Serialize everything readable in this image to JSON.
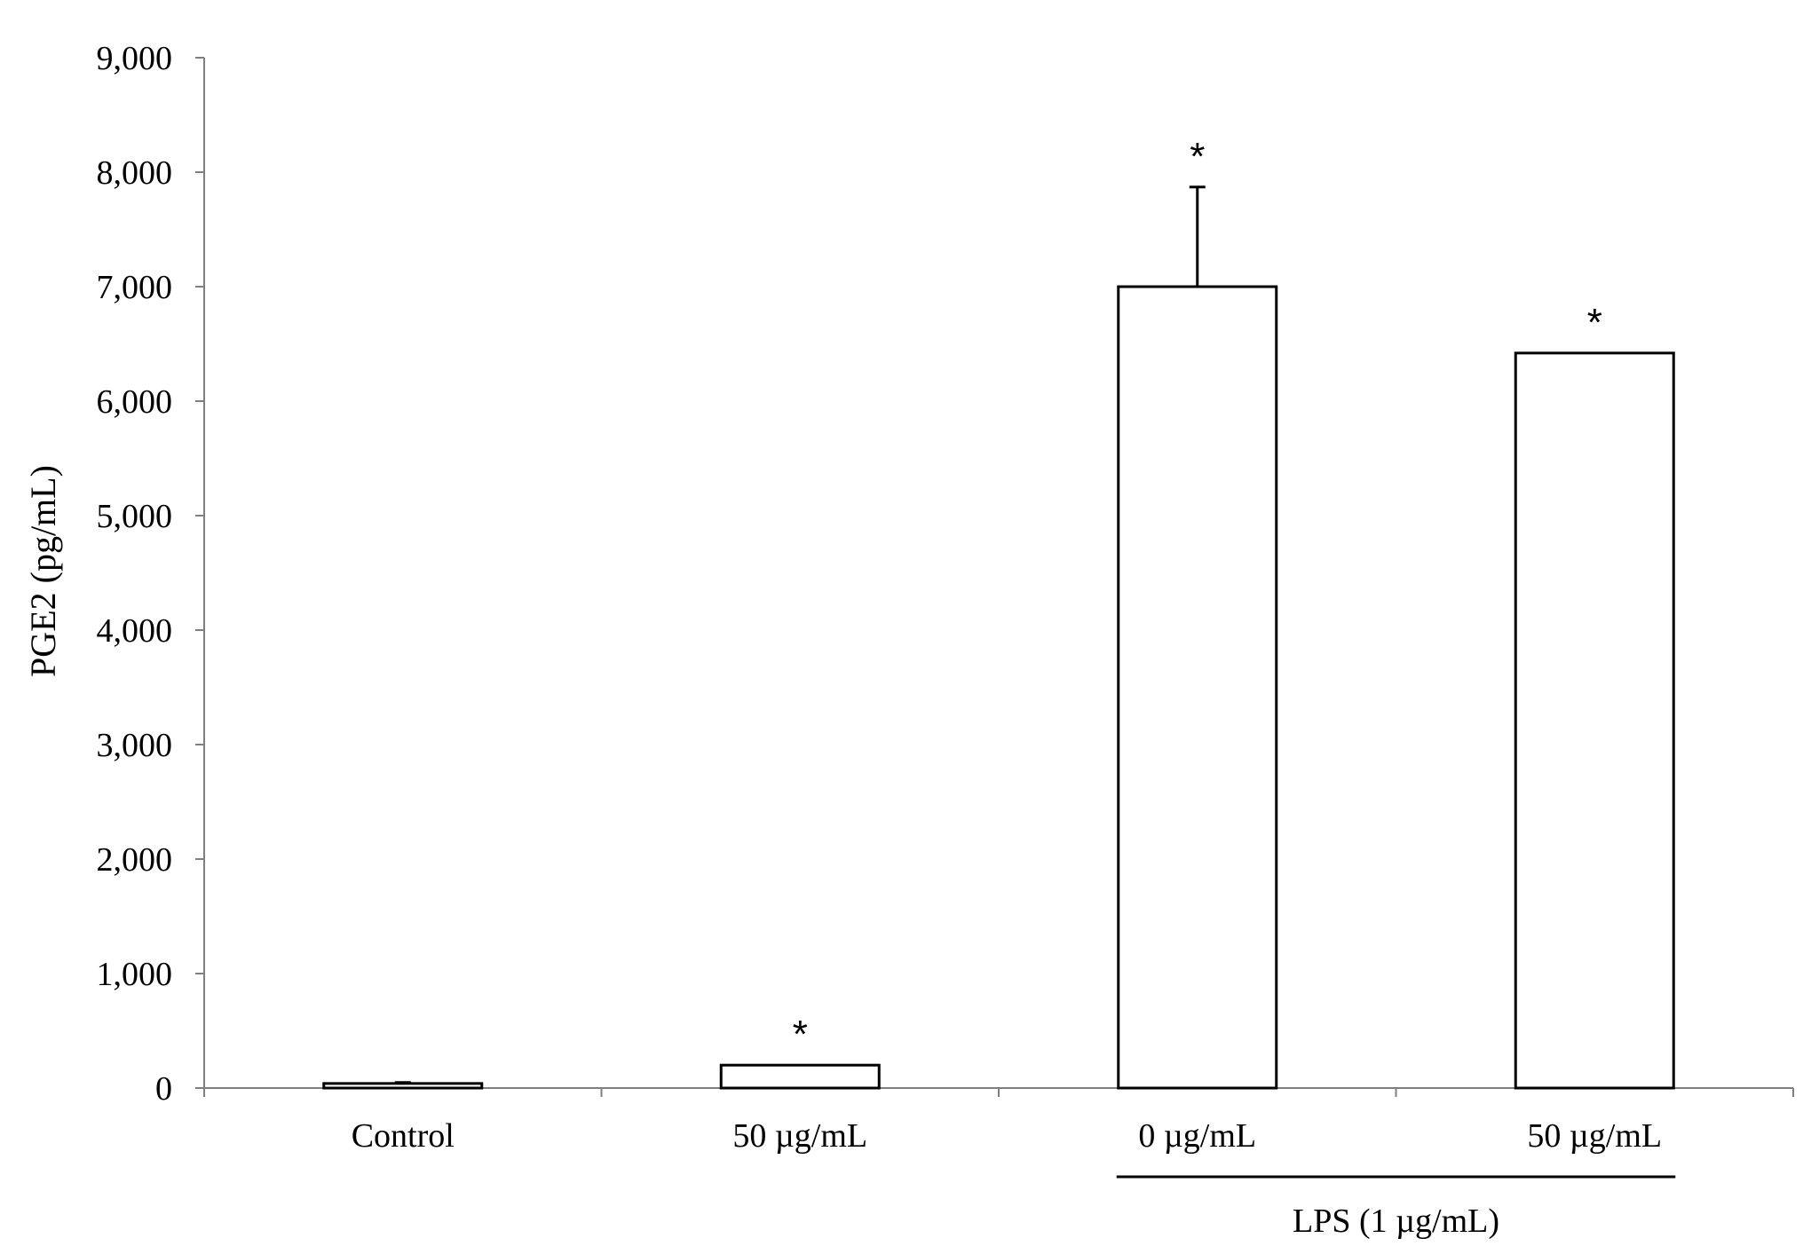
{
  "chart_data": {
    "type": "bar",
    "categories": [
      "Control",
      "50 µg/mL",
      "0 µg/mL",
      "50 µg/mL"
    ],
    "values": [
      40,
      200,
      7000,
      6420
    ],
    "errors": [
      8,
      0,
      870,
      0
    ],
    "significance": [
      "",
      "*",
      "*",
      "*"
    ],
    "ylabel": "PGE2 (pg/mL)",
    "xlabel": "",
    "ylim": [
      0,
      9000
    ],
    "yticks": [
      0,
      1000,
      2000,
      3000,
      4000,
      5000,
      6000,
      7000,
      8000,
      9000
    ],
    "ytick_labels": [
      "0",
      "1,000",
      "2,000",
      "3,000",
      "4,000",
      "5,000",
      "6,000",
      "7,000",
      "8,000",
      "9,000"
    ],
    "group_bracket": {
      "label": "LPS (1 µg/mL)",
      "categories": [
        "0 µg/mL",
        "50 µg/mL"
      ]
    },
    "grid": false,
    "bar_fill": "#ffffff",
    "bar_stroke": "#000000",
    "axis_color": "#7f7f7f"
  }
}
